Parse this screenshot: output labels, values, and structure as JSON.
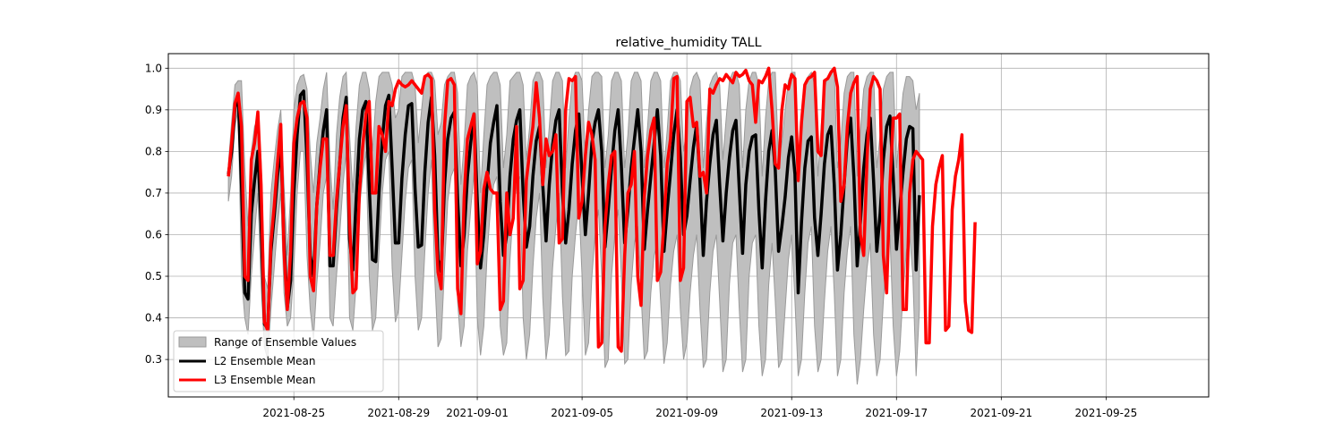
{
  "chart_data": {
    "type": "line",
    "title": "relative_humidity TALL",
    "xlabel": "",
    "ylabel": "",
    "x_start": "2021-08-22T12:00",
    "x_step_hours": 3,
    "xlim": [
      "2021-08-20T05:00",
      "2021-09-28T22:00"
    ],
    "ylim": [
      0.21,
      1.035
    ],
    "grid": true,
    "legend_position": "lower-left",
    "xticks": [
      "2021-08-25",
      "2021-08-29",
      "2021-09-01",
      "2021-09-05",
      "2021-09-09",
      "2021-09-13",
      "2021-09-17",
      "2021-09-21",
      "2021-09-25"
    ],
    "yticks": [
      0.3,
      0.4,
      0.5,
      0.6,
      0.7,
      0.8,
      0.9,
      1.0
    ],
    "ytick_labels": [
      "0.3",
      "0.4",
      "0.5",
      "0.6",
      "0.7",
      "0.8",
      "0.9",
      "1.0"
    ],
    "colors": {
      "range_fill": "#bfbfbf",
      "range_edge": "#9a9a9a",
      "l2": "#000000",
      "l3": "#ff0000"
    },
    "series": [
      {
        "name": "L2 Ensemble Mean",
        "color": "#000000",
        "values": [
          0.745,
          0.8,
          0.905,
          0.935,
          0.72,
          0.46,
          0.445,
          0.65,
          0.73,
          0.8,
          0.63,
          0.385,
          0.375,
          0.56,
          0.645,
          0.74,
          0.82,
          0.585,
          0.425,
          0.49,
          0.7,
          0.84,
          0.935,
          0.945,
          0.78,
          0.55,
          0.5,
          0.67,
          0.77,
          0.85,
          0.9,
          0.525,
          0.525,
          0.66,
          0.77,
          0.88,
          0.93,
          0.59,
          0.515,
          0.68,
          0.83,
          0.9,
          0.92,
          0.715,
          0.54,
          0.535,
          0.7,
          0.83,
          0.91,
          0.935,
          0.76,
          0.58,
          0.58,
          0.735,
          0.84,
          0.91,
          0.915,
          0.71,
          0.57,
          0.575,
          0.75,
          0.87,
          0.93,
          0.79,
          0.54,
          0.51,
          0.72,
          0.83,
          0.88,
          0.895,
          0.685,
          0.525,
          0.6,
          0.74,
          0.82,
          0.89,
          0.68,
          0.52,
          0.6,
          0.72,
          0.82,
          0.87,
          0.91,
          0.68,
          0.55,
          0.6,
          0.74,
          0.83,
          0.875,
          0.9,
          0.7,
          0.57,
          0.62,
          0.74,
          0.825,
          0.86,
          0.72,
          0.585,
          0.72,
          0.815,
          0.875,
          0.9,
          0.7,
          0.58,
          0.66,
          0.77,
          0.85,
          0.89,
          0.74,
          0.6,
          0.7,
          0.82,
          0.87,
          0.9,
          0.8,
          0.57,
          0.66,
          0.76,
          0.85,
          0.9,
          0.765,
          0.58,
          0.66,
          0.76,
          0.83,
          0.9,
          0.8,
          0.565,
          0.66,
          0.74,
          0.82,
          0.9,
          0.79,
          0.56,
          0.66,
          0.75,
          0.84,
          0.9,
          0.785,
          0.6,
          0.645,
          0.73,
          0.81,
          0.865,
          0.73,
          0.55,
          0.68,
          0.77,
          0.84,
          0.875,
          0.72,
          0.585,
          0.7,
          0.785,
          0.85,
          0.875,
          0.71,
          0.555,
          0.72,
          0.8,
          0.835,
          0.84,
          0.66,
          0.52,
          0.68,
          0.8,
          0.85,
          0.755,
          0.56,
          0.62,
          0.69,
          0.785,
          0.835,
          0.745,
          0.46,
          0.63,
          0.76,
          0.825,
          0.835,
          0.64,
          0.55,
          0.65,
          0.77,
          0.84,
          0.86,
          0.72,
          0.515,
          0.6,
          0.72,
          0.83,
          0.88,
          0.74,
          0.525,
          0.63,
          0.76,
          0.84,
          0.88,
          0.73,
          0.56,
          0.65,
          0.78,
          0.86,
          0.885,
          0.74,
          0.565,
          0.66,
          0.75,
          0.83,
          0.86,
          0.855,
          0.515,
          0.695
        ]
      },
      {
        "name": "L3 Ensemble Mean",
        "color": "#ff0000",
        "values": [
          0.74,
          0.82,
          0.915,
          0.94,
          0.86,
          0.5,
          0.49,
          0.78,
          0.82,
          0.895,
          0.72,
          0.39,
          0.37,
          0.58,
          0.67,
          0.77,
          0.865,
          0.56,
          0.42,
          0.56,
          0.82,
          0.88,
          0.915,
          0.92,
          0.88,
          0.5,
          0.465,
          0.67,
          0.76,
          0.83,
          0.83,
          0.55,
          0.55,
          0.68,
          0.77,
          0.86,
          0.91,
          0.63,
          0.46,
          0.47,
          0.7,
          0.81,
          0.89,
          0.92,
          0.7,
          0.7,
          0.86,
          0.84,
          0.8,
          0.92,
          0.91,
          0.95,
          0.97,
          0.96,
          0.955,
          0.96,
          0.97,
          0.96,
          0.95,
          0.94,
          0.98,
          0.985,
          0.975,
          0.66,
          0.51,
          0.47,
          0.86,
          0.97,
          0.975,
          0.96,
          0.47,
          0.41,
          0.69,
          0.83,
          0.86,
          0.89,
          0.53,
          0.56,
          0.71,
          0.75,
          0.71,
          0.7,
          0.7,
          0.42,
          0.44,
          0.7,
          0.6,
          0.64,
          0.86,
          0.47,
          0.49,
          0.73,
          0.8,
          0.86,
          0.965,
          0.88,
          0.72,
          0.83,
          0.79,
          0.8,
          0.84,
          0.58,
          0.59,
          0.9,
          0.975,
          0.97,
          0.98,
          0.64,
          0.68,
          0.79,
          0.87,
          0.84,
          0.78,
          0.33,
          0.34,
          0.62,
          0.72,
          0.79,
          0.8,
          0.33,
          0.32,
          0.55,
          0.7,
          0.72,
          0.8,
          0.5,
          0.43,
          0.69,
          0.79,
          0.85,
          0.88,
          0.49,
          0.51,
          0.63,
          0.77,
          0.83,
          0.975,
          0.98,
          0.49,
          0.52,
          0.92,
          0.93,
          0.86,
          0.87,
          0.74,
          0.75,
          0.7,
          0.95,
          0.94,
          0.96,
          0.975,
          0.97,
          0.985,
          0.975,
          0.965,
          0.99,
          0.98,
          0.985,
          0.995,
          0.97,
          0.96,
          0.87,
          0.97,
          0.965,
          0.98,
          1.0,
          0.9,
          0.77,
          0.76,
          0.9,
          0.96,
          0.95,
          0.985,
          0.975,
          0.73,
          0.87,
          0.96,
          0.975,
          0.98,
          0.99,
          0.8,
          0.79,
          0.97,
          0.975,
          0.99,
          1.0,
          0.955,
          0.68,
          0.72,
          0.86,
          0.94,
          0.965,
          0.98,
          0.6,
          0.55,
          0.78,
          0.95,
          0.98,
          0.97,
          0.95,
          0.55,
          0.46,
          0.72,
          0.88,
          0.88,
          0.89,
          0.42,
          0.42,
          0.7,
          0.78,
          0.8,
          0.79,
          0.78,
          0.34,
          0.34,
          0.62,
          0.72,
          0.76,
          0.79,
          0.37,
          0.38,
          0.66,
          0.74,
          0.78,
          0.84,
          0.44,
          0.37,
          0.365,
          0.63
        ]
      }
    ],
    "range": {
      "name": "Range of Ensemble Values",
      "color": "#bfbfbf",
      "upper": [
        0.77,
        0.87,
        0.96,
        0.97,
        0.97,
        0.76,
        0.62,
        0.8,
        0.86,
        0.88,
        0.78,
        0.5,
        0.47,
        0.7,
        0.78,
        0.85,
        0.9,
        0.72,
        0.55,
        0.7,
        0.9,
        0.96,
        0.98,
        0.985,
        0.95,
        0.8,
        0.7,
        0.82,
        0.88,
        0.95,
        0.99,
        0.78,
        0.66,
        0.84,
        0.93,
        0.98,
        0.99,
        0.84,
        0.7,
        0.86,
        0.96,
        0.99,
        0.99,
        0.95,
        0.8,
        0.92,
        0.98,
        0.99,
        0.99,
        0.99,
        0.96,
        0.88,
        0.9,
        0.98,
        0.99,
        0.99,
        0.99,
        0.96,
        0.82,
        0.9,
        0.98,
        0.99,
        0.99,
        0.97,
        0.84,
        0.87,
        0.96,
        0.98,
        0.99,
        0.99,
        0.94,
        0.72,
        0.82,
        0.96,
        0.98,
        0.99,
        0.96,
        0.7,
        0.84,
        0.96,
        0.98,
        0.99,
        0.99,
        0.96,
        0.76,
        0.84,
        0.97,
        0.98,
        0.99,
        0.99,
        0.96,
        0.78,
        0.86,
        0.97,
        0.99,
        0.99,
        0.97,
        0.76,
        0.86,
        0.97,
        0.99,
        0.99,
        0.97,
        0.76,
        0.88,
        0.97,
        0.99,
        0.99,
        0.97,
        0.78,
        0.9,
        0.98,
        0.99,
        0.99,
        0.98,
        0.76,
        0.84,
        0.97,
        0.99,
        0.99,
        0.97,
        0.76,
        0.84,
        0.97,
        0.99,
        0.99,
        0.97,
        0.76,
        0.86,
        0.97,
        0.99,
        0.99,
        0.97,
        0.76,
        0.85,
        0.97,
        0.99,
        0.99,
        0.97,
        0.8,
        0.86,
        0.95,
        0.98,
        0.99,
        0.97,
        0.76,
        0.87,
        0.96,
        0.98,
        0.99,
        0.96,
        0.78,
        0.88,
        0.97,
        0.99,
        0.99,
        0.96,
        0.76,
        0.9,
        0.97,
        0.99,
        0.99,
        0.96,
        0.74,
        0.88,
        0.97,
        0.99,
        0.99,
        0.78,
        0.82,
        0.9,
        0.97,
        0.99,
        0.99,
        0.76,
        0.85,
        0.95,
        0.98,
        0.99,
        0.96,
        0.74,
        0.86,
        0.95,
        0.98,
        0.99,
        0.99,
        0.76,
        0.82,
        0.94,
        0.98,
        0.99,
        0.99,
        0.74,
        0.85,
        0.95,
        0.98,
        0.99,
        0.99,
        0.76,
        0.84,
        0.95,
        0.98,
        0.99,
        0.99,
        0.76,
        0.85,
        0.94,
        0.98,
        0.98,
        0.97,
        0.9,
        0.94
      ],
      "lower": [
        0.68,
        0.74,
        0.86,
        0.9,
        0.5,
        0.4,
        0.36,
        0.5,
        0.6,
        0.7,
        0.48,
        0.33,
        0.3,
        0.42,
        0.52,
        0.62,
        0.7,
        0.46,
        0.38,
        0.4,
        0.52,
        0.7,
        0.8,
        0.8,
        0.55,
        0.42,
        0.35,
        0.48,
        0.58,
        0.7,
        0.74,
        0.4,
        0.38,
        0.5,
        0.6,
        0.72,
        0.8,
        0.4,
        0.37,
        0.48,
        0.66,
        0.74,
        0.8,
        0.5,
        0.37,
        0.4,
        0.56,
        0.7,
        0.78,
        0.8,
        0.52,
        0.39,
        0.42,
        0.55,
        0.68,
        0.76,
        0.78,
        0.5,
        0.37,
        0.4,
        0.56,
        0.7,
        0.78,
        0.5,
        0.33,
        0.35,
        0.52,
        0.68,
        0.74,
        0.76,
        0.44,
        0.33,
        0.38,
        0.56,
        0.66,
        0.75,
        0.4,
        0.31,
        0.38,
        0.55,
        0.66,
        0.72,
        0.74,
        0.38,
        0.31,
        0.34,
        0.54,
        0.66,
        0.72,
        0.74,
        0.4,
        0.3,
        0.36,
        0.52,
        0.64,
        0.7,
        0.45,
        0.3,
        0.36,
        0.52,
        0.62,
        0.7,
        0.45,
        0.31,
        0.32,
        0.5,
        0.6,
        0.68,
        0.5,
        0.31,
        0.34,
        0.5,
        0.6,
        0.66,
        0.5,
        0.28,
        0.3,
        0.5,
        0.6,
        0.66,
        0.5,
        0.29,
        0.3,
        0.48,
        0.58,
        0.62,
        0.46,
        0.3,
        0.32,
        0.46,
        0.55,
        0.58,
        0.44,
        0.29,
        0.34,
        0.48,
        0.56,
        0.6,
        0.42,
        0.3,
        0.34,
        0.46,
        0.55,
        0.6,
        0.42,
        0.28,
        0.3,
        0.46,
        0.56,
        0.6,
        0.44,
        0.27,
        0.3,
        0.48,
        0.58,
        0.6,
        0.42,
        0.27,
        0.3,
        0.5,
        0.58,
        0.6,
        0.38,
        0.26,
        0.3,
        0.48,
        0.58,
        0.44,
        0.28,
        0.3,
        0.42,
        0.54,
        0.6,
        0.44,
        0.26,
        0.3,
        0.46,
        0.58,
        0.62,
        0.38,
        0.27,
        0.3,
        0.44,
        0.56,
        0.62,
        0.46,
        0.26,
        0.3,
        0.46,
        0.56,
        0.62,
        0.36,
        0.24,
        0.3,
        0.42,
        0.52,
        0.58,
        0.36,
        0.26,
        0.3,
        0.44,
        0.55,
        0.6,
        0.38,
        0.26,
        0.32,
        0.46,
        0.56,
        0.6,
        0.5,
        0.26,
        0.42
      ]
    }
  },
  "legend": {
    "range_label": "Range of Ensemble Values",
    "l2_label": "L2 Ensemble Mean",
    "l3_label": "L3 Ensemble Mean"
  }
}
